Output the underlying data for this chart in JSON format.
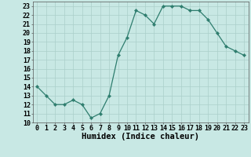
{
  "x": [
    0,
    1,
    2,
    3,
    4,
    5,
    6,
    7,
    8,
    9,
    10,
    11,
    12,
    13,
    14,
    15,
    16,
    17,
    18,
    19,
    20,
    21,
    22,
    23
  ],
  "y": [
    14.0,
    13.0,
    12.0,
    12.0,
    12.5,
    12.0,
    10.5,
    11.0,
    13.0,
    17.5,
    19.5,
    22.5,
    22.0,
    21.0,
    23.0,
    23.0,
    23.0,
    22.5,
    22.5,
    21.5,
    20.0,
    18.5,
    18.0,
    17.5
  ],
  "line_color": "#2e7d6e",
  "marker": "D",
  "marker_size": 2.2,
  "bg_color": "#c8e8e4",
  "grid_color": "#aacfca",
  "xlabel": "Humidex (Indice chaleur)",
  "ylim": [
    10,
    23.5
  ],
  "xlim": [
    -0.5,
    23.5
  ],
  "yticks": [
    10,
    11,
    12,
    13,
    14,
    15,
    16,
    17,
    18,
    19,
    20,
    21,
    22,
    23
  ],
  "xticks": [
    0,
    1,
    2,
    3,
    4,
    5,
    6,
    7,
    8,
    9,
    10,
    11,
    12,
    13,
    14,
    15,
    16,
    17,
    18,
    19,
    20,
    21,
    22,
    23
  ],
  "xlabel_fontsize": 7.5,
  "tick_fontsize": 6.0
}
